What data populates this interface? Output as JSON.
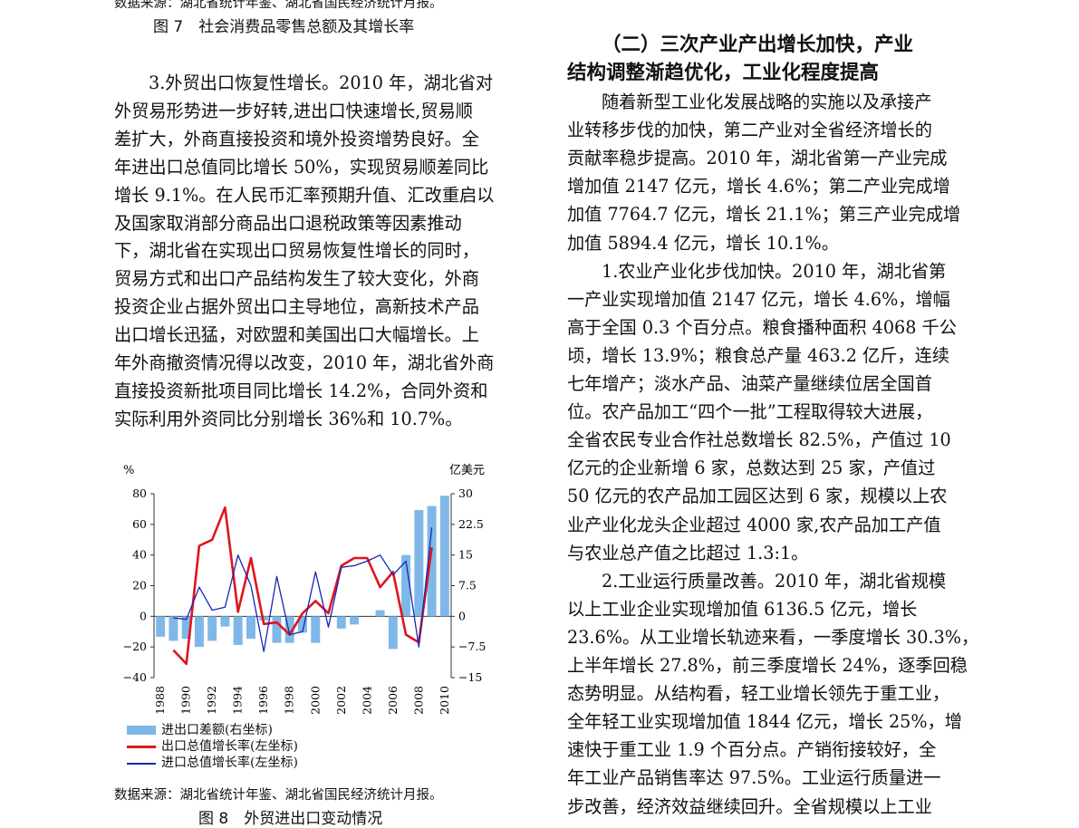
{
  "left_column": {
    "source_top": "数据来源：湖北省统计年鉴、湖北省国民经济统计月报。",
    "figure7_caption": "图 7　社会消费品零售总额及其增长率",
    "paragraph_lines": [
      "3.外贸出口恢复性增长。2010 年，湖北省对",
      "外贸易形势进一步好转,进出口快速增长,贸易顺",
      "差扩大，外商直接投资和境外投资增势良好。全",
      "年进出口总值同比增长 50%，实现贸易顺差同比",
      "增长 9.1%。在人民币汇率预期升值、汇改重启以",
      "及国家取消部分商品出口退税政策等因素推动",
      "下，湖北省在实现出口贸易恢复性增长的同时，",
      "贸易方式和出口产品结构发生了较大变化，外商",
      "投资企业占据外贸出口主导地位，高新技术产品",
      "出口增长迅猛，对欧盟和美国出口大幅增长。上",
      "年外商撤资情况得以改变，2010 年，湖北省外商",
      "直接投资新批项目同比增长 14.2%，合同外资和",
      "实际利用外资同比分别增长 36%和 10.7%。"
    ],
    "source_bottom": "数据来源：湖北省统计年鉴、湖北省国民经济统计月报。",
    "figure8_caption": "图 8　外贸进出口变动情况"
  },
  "right_column": {
    "heading_lines": [
      "（二）三次产业产出增长加快，产业",
      "结构调整渐趋优化，工业化程度提高"
    ],
    "paragraph_lines": [
      "随着新型工业化发展战略的实施以及承接产",
      "业转移步伐的加快，第二产业对全省经济增长的",
      "贡献率稳步提高。2010 年，湖北省第一产业完成",
      "增加值 2147 亿元，增长 4.6%；第二产业完成增",
      "加值 7764.7 亿元，增长 21.1%；第三产业完成增",
      "加值 5894.4 亿元，增长 10.1%。",
      "1.农业产业化步伐加快。2010 年，湖北省第",
      "一产业实现增加值 2147 亿元，增长 4.6%，增幅",
      "高于全国 0.3 个百分点。粮食播种面积 4068 千公",
      "顷，增长 13.9%；粮食总产量 463.2 亿斤，连续",
      "七年增产；淡水产品、油菜产量继续位居全国首",
      "位。农产品加工“四个一批”工程取得较大进展，",
      "全省农民专业合作社总数增长 82.5%，产值过 10",
      "亿元的企业新增 6 家，总数达到 25 家，产值过",
      "50 亿元的农产品加工园区达到 6 家，规模以上农",
      "业产业化龙头企业超过 4000 家,农产品加工产值",
      "与农业总产值之比超过 1.3:1。",
      "2.工业运行质量改善。2010 年，湖北省规模",
      "以上工业企业实现增加值 6136.5 亿元，增长",
      "23.6%。从工业增长轨迹来看，一季度增长 30.3%，",
      "上半年增长 27.8%，前三季度增长 24%，逐季回稳",
      "态势明显。从结构看，轻工业增长领先于重工业，",
      "全年轻工业实现增加值 1844 亿元，增长 25%，增",
      "速快于重工业 1.9 个百分点。产销衔接较好，全",
      "年工业产品销售率达 97.5%。工业运行质量进一",
      "步改善，经济效益继续回升。全省规模以上工业"
    ]
  },
  "chart_data": {
    "type": "bar",
    "left_axis_unit": "%",
    "right_axis_unit": "亿美元",
    "left_ylim": [
      -40,
      80
    ],
    "right_ylim": [
      -15,
      30
    ],
    "left_ticks": [
      "80",
      "60",
      "40",
      "20",
      "0",
      "−20",
      "−40"
    ],
    "right_ticks": [
      "30",
      "22.5",
      "15",
      "7.5",
      "0",
      "−7.5",
      "−15"
    ],
    "x_tick_labels": [
      "1988",
      "1990",
      "1992",
      "1994",
      "1996",
      "1998",
      "2000",
      "2002",
      "2004",
      "2006",
      "2008",
      "2010"
    ],
    "years": [
      1988,
      1989,
      1990,
      1991,
      1992,
      1993,
      1994,
      1995,
      1996,
      1997,
      1998,
      1999,
      2000,
      2001,
      2002,
      2003,
      2004,
      2005,
      2006,
      2007,
      2008,
      2009,
      2010
    ],
    "series": [
      {
        "name": "进出口差额(右坐标)",
        "kind": "bar",
        "axis": "right",
        "color": "#7fb8e8",
        "values": [
          -5,
          -6,
          -5.5,
          -7.5,
          -6,
          -2.5,
          -7,
          -5.5,
          -1,
          -6.5,
          -6.5,
          -4,
          -6.5,
          0,
          -3,
          -2,
          0,
          1.5,
          -8,
          15,
          26,
          27,
          29.5
        ]
      },
      {
        "name": "出口总值增长率(左坐标)",
        "kind": "line",
        "axis": "left",
        "color": "#e0141c",
        "values": [
          null,
          -22,
          -31,
          46,
          50,
          71,
          3,
          38,
          -5,
          -4,
          -12,
          2,
          10,
          2,
          33,
          38,
          38,
          19,
          29,
          -12,
          -17,
          45,
          null
        ]
      },
      {
        "name": "进口总值增长率(左坐标)",
        "kind": "line",
        "axis": "left",
        "color": "#1428b4",
        "values": [
          null,
          -1,
          -2,
          19,
          4,
          6,
          40,
          20,
          -23,
          26,
          -12,
          -10,
          29,
          -7,
          32,
          33,
          36,
          40,
          27,
          36,
          -20,
          58,
          null
        ]
      }
    ]
  }
}
